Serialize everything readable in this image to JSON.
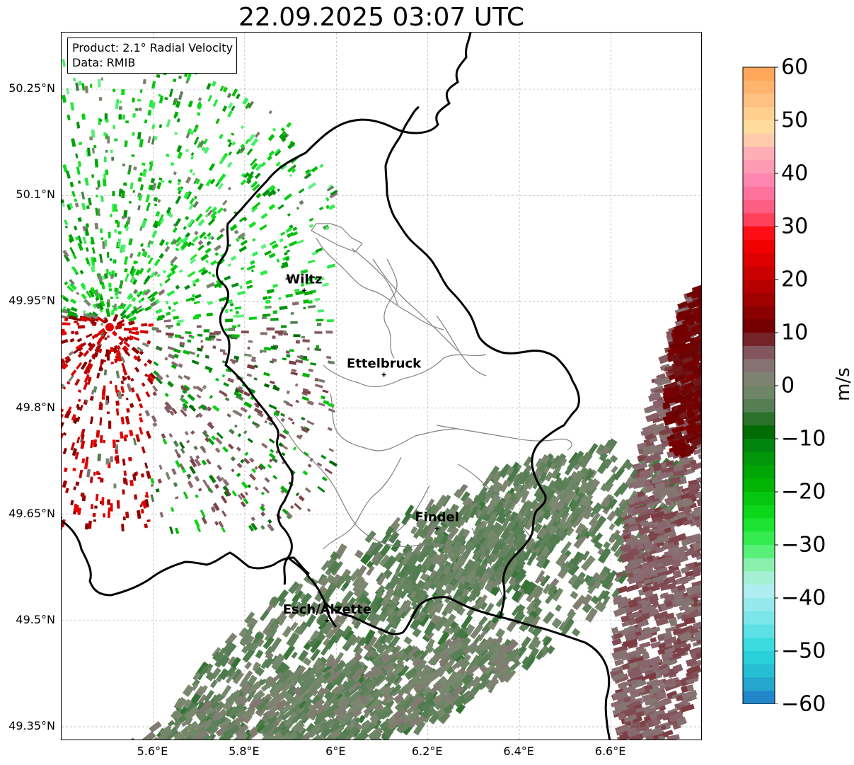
{
  "title": "22.09.2025 03:07 UTC",
  "info_box": {
    "product": "Product: 2.1° Radial Velocity",
    "data_source": "Data: RMIB"
  },
  "lat_labels": [
    "50.25°N",
    "50.1°N",
    "49.95°N",
    "49.8°N",
    "49.65°N",
    "49.5°N",
    "49.35°N"
  ],
  "lon_labels": [
    "5.6°E",
    "5.8°E",
    "6°E",
    "6.2°E",
    "6.4°E",
    "6.6°E"
  ],
  "cities": [
    {
      "name": "Wiltz",
      "lon": 5.93,
      "lat": 49.966
    },
    {
      "name": "Ettelbruck",
      "lon": 6.104,
      "lat": 49.847
    },
    {
      "name": "Findel",
      "lon": 6.22,
      "lat": 49.63
    },
    {
      "name": "Esch/Alzette",
      "lon": 5.98,
      "lat": 49.5
    }
  ],
  "radar_site": {
    "lon": 5.505,
    "lat": 49.914
  },
  "colorbar": {
    "label": "m/s",
    "ticks": [
      "60",
      "50",
      "40",
      "30",
      "20",
      "10",
      "0",
      "−10",
      "−20",
      "−30",
      "−40",
      "−50",
      "−60"
    ],
    "min": -60,
    "max": 60,
    "stops": [
      {
        "v": -60,
        "c": "#1f78c8"
      },
      {
        "v": -55,
        "c": "#25b5d0"
      },
      {
        "v": -50,
        "c": "#2ad8dc"
      },
      {
        "v": -45,
        "c": "#6ee3e8"
      },
      {
        "v": -38,
        "c": "#b6eef2"
      },
      {
        "v": -34,
        "c": "#8ef0b0"
      },
      {
        "v": -30,
        "c": "#40f060"
      },
      {
        "v": -25,
        "c": "#10e020"
      },
      {
        "v": -18,
        "c": "#00b000"
      },
      {
        "v": -12,
        "c": "#008c10"
      },
      {
        "v": -8,
        "c": "#006400"
      },
      {
        "v": -5,
        "c": "#4a7a4a"
      },
      {
        "v": 0,
        "c": "#7a8a70"
      },
      {
        "v": 5,
        "c": "#8a6a72"
      },
      {
        "v": 8,
        "c": "#7a3a40"
      },
      {
        "v": 10,
        "c": "#6a0000"
      },
      {
        "v": 18,
        "c": "#b00000"
      },
      {
        "v": 28,
        "c": "#ff0000"
      },
      {
        "v": 32,
        "c": "#ff5070"
      },
      {
        "v": 38,
        "c": "#ff80b0"
      },
      {
        "v": 44,
        "c": "#ffb0b8"
      },
      {
        "v": 48,
        "c": "#ffe0a0"
      },
      {
        "v": 54,
        "c": "#ffc080"
      },
      {
        "v": 60,
        "c": "#ffa050"
      }
    ]
  },
  "colors": {
    "border_country": "#000000",
    "border_canton": "#808080",
    "grid": "#b0b0b0"
  }
}
